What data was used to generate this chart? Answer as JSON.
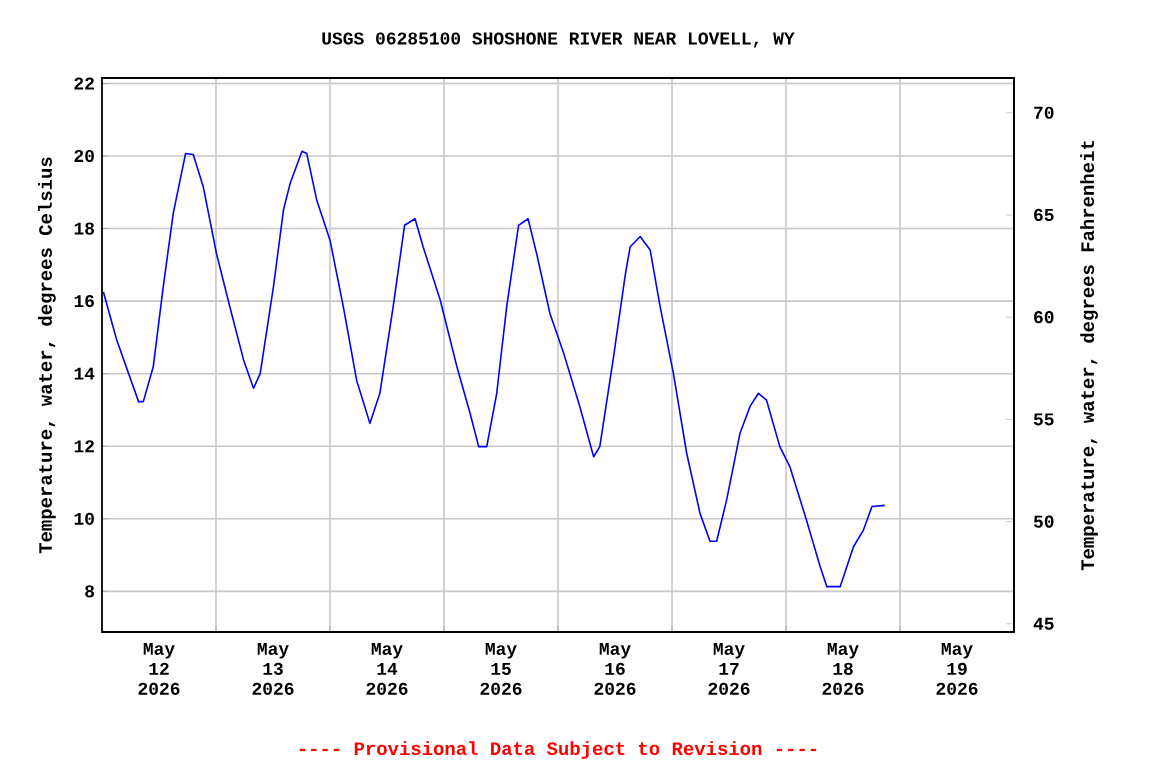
{
  "chart_data": {
    "type": "line",
    "title": "USGS 06285100 SHOSHONE RIVER NEAR LOVELL, WY",
    "ylabel": "Temperature, water, degrees Celsius",
    "y2label": "Temperature, water, degrees Fahrenheit",
    "annotations": [
      "---- Provisional Data Subject to Revision ----"
    ],
    "x": [
      "2026-05-12T00:18",
      "2026-05-12T03:06",
      "2026-05-12T07:42",
      "2026-05-12T08:42",
      "2026-05-12T10:48",
      "2026-05-12T12:54",
      "2026-05-12T15:00",
      "2026-05-12T17:36",
      "2026-05-12T19:12",
      "2026-05-12T21:18",
      "2026-05-13T00:06",
      "2026-05-13T02:54",
      "2026-05-13T05:48",
      "2026-05-13T07:54",
      "2026-05-13T09:18",
      "2026-05-13T12:06",
      "2026-05-13T14:12",
      "2026-05-13T15:36",
      "2026-05-13T18:06",
      "2026-05-13T19:06",
      "2026-05-13T21:12",
      "2026-05-14T00:00",
      "2026-05-14T02:48",
      "2026-05-14T05:36",
      "2026-05-14T08:24",
      "2026-05-14T10:30",
      "2026-05-14T13:18",
      "2026-05-14T15:42",
      "2026-05-14T17:54",
      "2026-05-14T19:36",
      "2026-05-14T23:12",
      "2026-05-15T02:42",
      "2026-05-15T05:30",
      "2026-05-15T07:18",
      "2026-05-15T09:00",
      "2026-05-15T11:06",
      "2026-05-15T13:12",
      "2026-05-15T15:42",
      "2026-05-15T17:42",
      "2026-05-15T19:30",
      "2026-05-15T22:18",
      "2026-05-16T01:12",
      "2026-05-16T04:36",
      "2026-05-16T07:30",
      "2026-05-16T08:48",
      "2026-05-16T11:36",
      "2026-05-16T14:12",
      "2026-05-16T15:12",
      "2026-05-16T17:18",
      "2026-05-16T19:24",
      "2026-05-16T21:30",
      "2026-05-17T00:18",
      "2026-05-17T03:06",
      "2026-05-17T05:54",
      "2026-05-17T08:00",
      "2026-05-17T09:24",
      "2026-05-17T11:30",
      "2026-05-17T14:18",
      "2026-05-17T16:24",
      "2026-05-17T18:12",
      "2026-05-17T19:54",
      "2026-05-17T22:42",
      "2026-05-18T00:48",
      "2026-05-18T04:18",
      "2026-05-18T07:12",
      "2026-05-18T08:36",
      "2026-05-18T11:24",
      "2026-05-18T14:12",
      "2026-05-18T16:18",
      "2026-05-18T18:06",
      "2026-05-18T20:48"
    ],
    "series": [
      {
        "color": "#0000ff",
        "values": [
          16.25,
          14.93,
          13.23,
          13.23,
          14.2,
          16.4,
          18.42,
          20.07,
          20.04,
          19.16,
          17.31,
          15.85,
          14.38,
          13.6,
          14.0,
          16.4,
          18.51,
          19.24,
          20.13,
          20.07,
          18.79,
          17.68,
          15.85,
          13.82,
          12.63,
          13.46,
          15.85,
          18.09,
          18.27,
          17.5,
          16.03,
          14.2,
          12.9,
          11.99,
          11.99,
          13.46,
          15.85,
          18.09,
          18.27,
          17.31,
          15.66,
          14.56,
          13.09,
          11.71,
          11.99,
          14.38,
          16.76,
          17.5,
          17.78,
          17.41,
          15.85,
          14.0,
          11.8,
          10.15,
          9.38,
          9.38,
          10.52,
          12.35,
          13.09,
          13.46,
          13.27,
          11.99,
          11.44,
          9.97,
          8.68,
          8.13,
          8.13,
          9.23,
          9.69,
          10.34,
          10.37
        ]
      }
    ],
    "xlim": [
      "2026-05-12T00:00",
      "2026-05-20T00:00"
    ],
    "xticks": [
      {
        "value": "2026-05-13T00:00",
        "label": null
      },
      {
        "value": "2026-05-14T00:00",
        "label": null
      },
      {
        "value": "2026-05-15T00:00",
        "label": null
      },
      {
        "value": "2026-05-16T00:00",
        "label": null
      },
      {
        "value": "2026-05-17T00:00",
        "label": null
      },
      {
        "value": "2026-05-18T00:00",
        "label": null
      },
      {
        "value": "2026-05-19T00:00",
        "label": null
      },
      {
        "value": "2026-05-12T12:00",
        "label": "May 12 2026"
      },
      {
        "value": "2026-05-13T12:00",
        "label": "May 13 2026"
      },
      {
        "value": "2026-05-14T12:00",
        "label": "May 14 2026"
      },
      {
        "value": "2026-05-15T12:00",
        "label": "May 15 2026"
      },
      {
        "value": "2026-05-16T12:00",
        "label": "May 16 2026"
      },
      {
        "value": "2026-05-17T12:00",
        "label": "May 17 2026"
      },
      {
        "value": "2026-05-18T12:00",
        "label": "May 18 2026"
      },
      {
        "value": "2026-05-19T12:00",
        "label": "May 19 2026"
      }
    ],
    "ylim": [
      6.88,
      22.15
    ],
    "yticks": [
      8,
      10,
      12,
      14,
      16,
      18,
      20,
      22
    ],
    "y2lim": [
      44.6,
      71.7
    ],
    "y2ticks": [
      45,
      50,
      55,
      60,
      65,
      70
    ],
    "grid": true
  }
}
